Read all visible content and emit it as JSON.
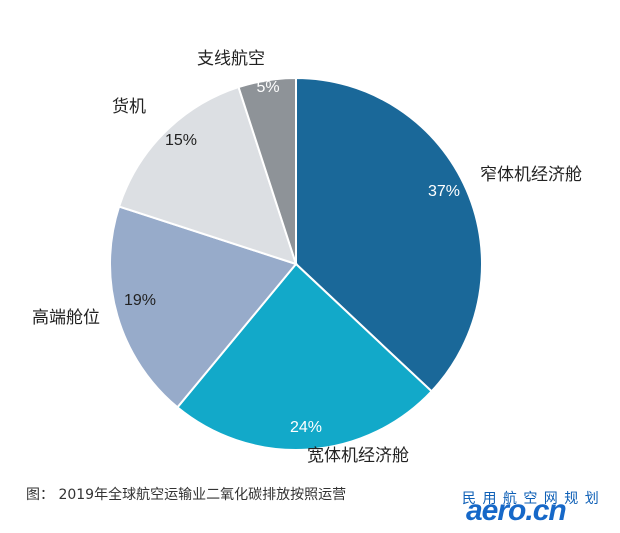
{
  "chart_data": {
    "type": "pie",
    "slices": [
      {
        "label": "窄体机经济舱",
        "value": 37,
        "value_label": "37%",
        "color": "#1a6899",
        "text_color": "#ffffff"
      },
      {
        "label": "宽体机经济舱",
        "value": 24,
        "value_label": "24%",
        "color": "#12a9c9",
        "text_color": "#ffffff"
      },
      {
        "label": "高端舱位",
        "value": 19,
        "value_label": "19%",
        "color": "#97abca",
        "text_color": "#222222"
      },
      {
        "label": "货机",
        "value": 15,
        "value_label": "15%",
        "color": "#dcdfe3",
        "text_color": "#222222"
      },
      {
        "label": "支线航空",
        "value": 5,
        "value_label": "5%",
        "color": "#8e9398",
        "text_color": "#ffffff"
      }
    ],
    "start_direction": "top",
    "direction": "clockwise",
    "caption": "图：  2019年全球航空运输业二氧化碳排放按照运营"
  },
  "watermark": {
    "top_text": "民 用 航 空 网 规 划",
    "main_text": "aero.cn"
  }
}
